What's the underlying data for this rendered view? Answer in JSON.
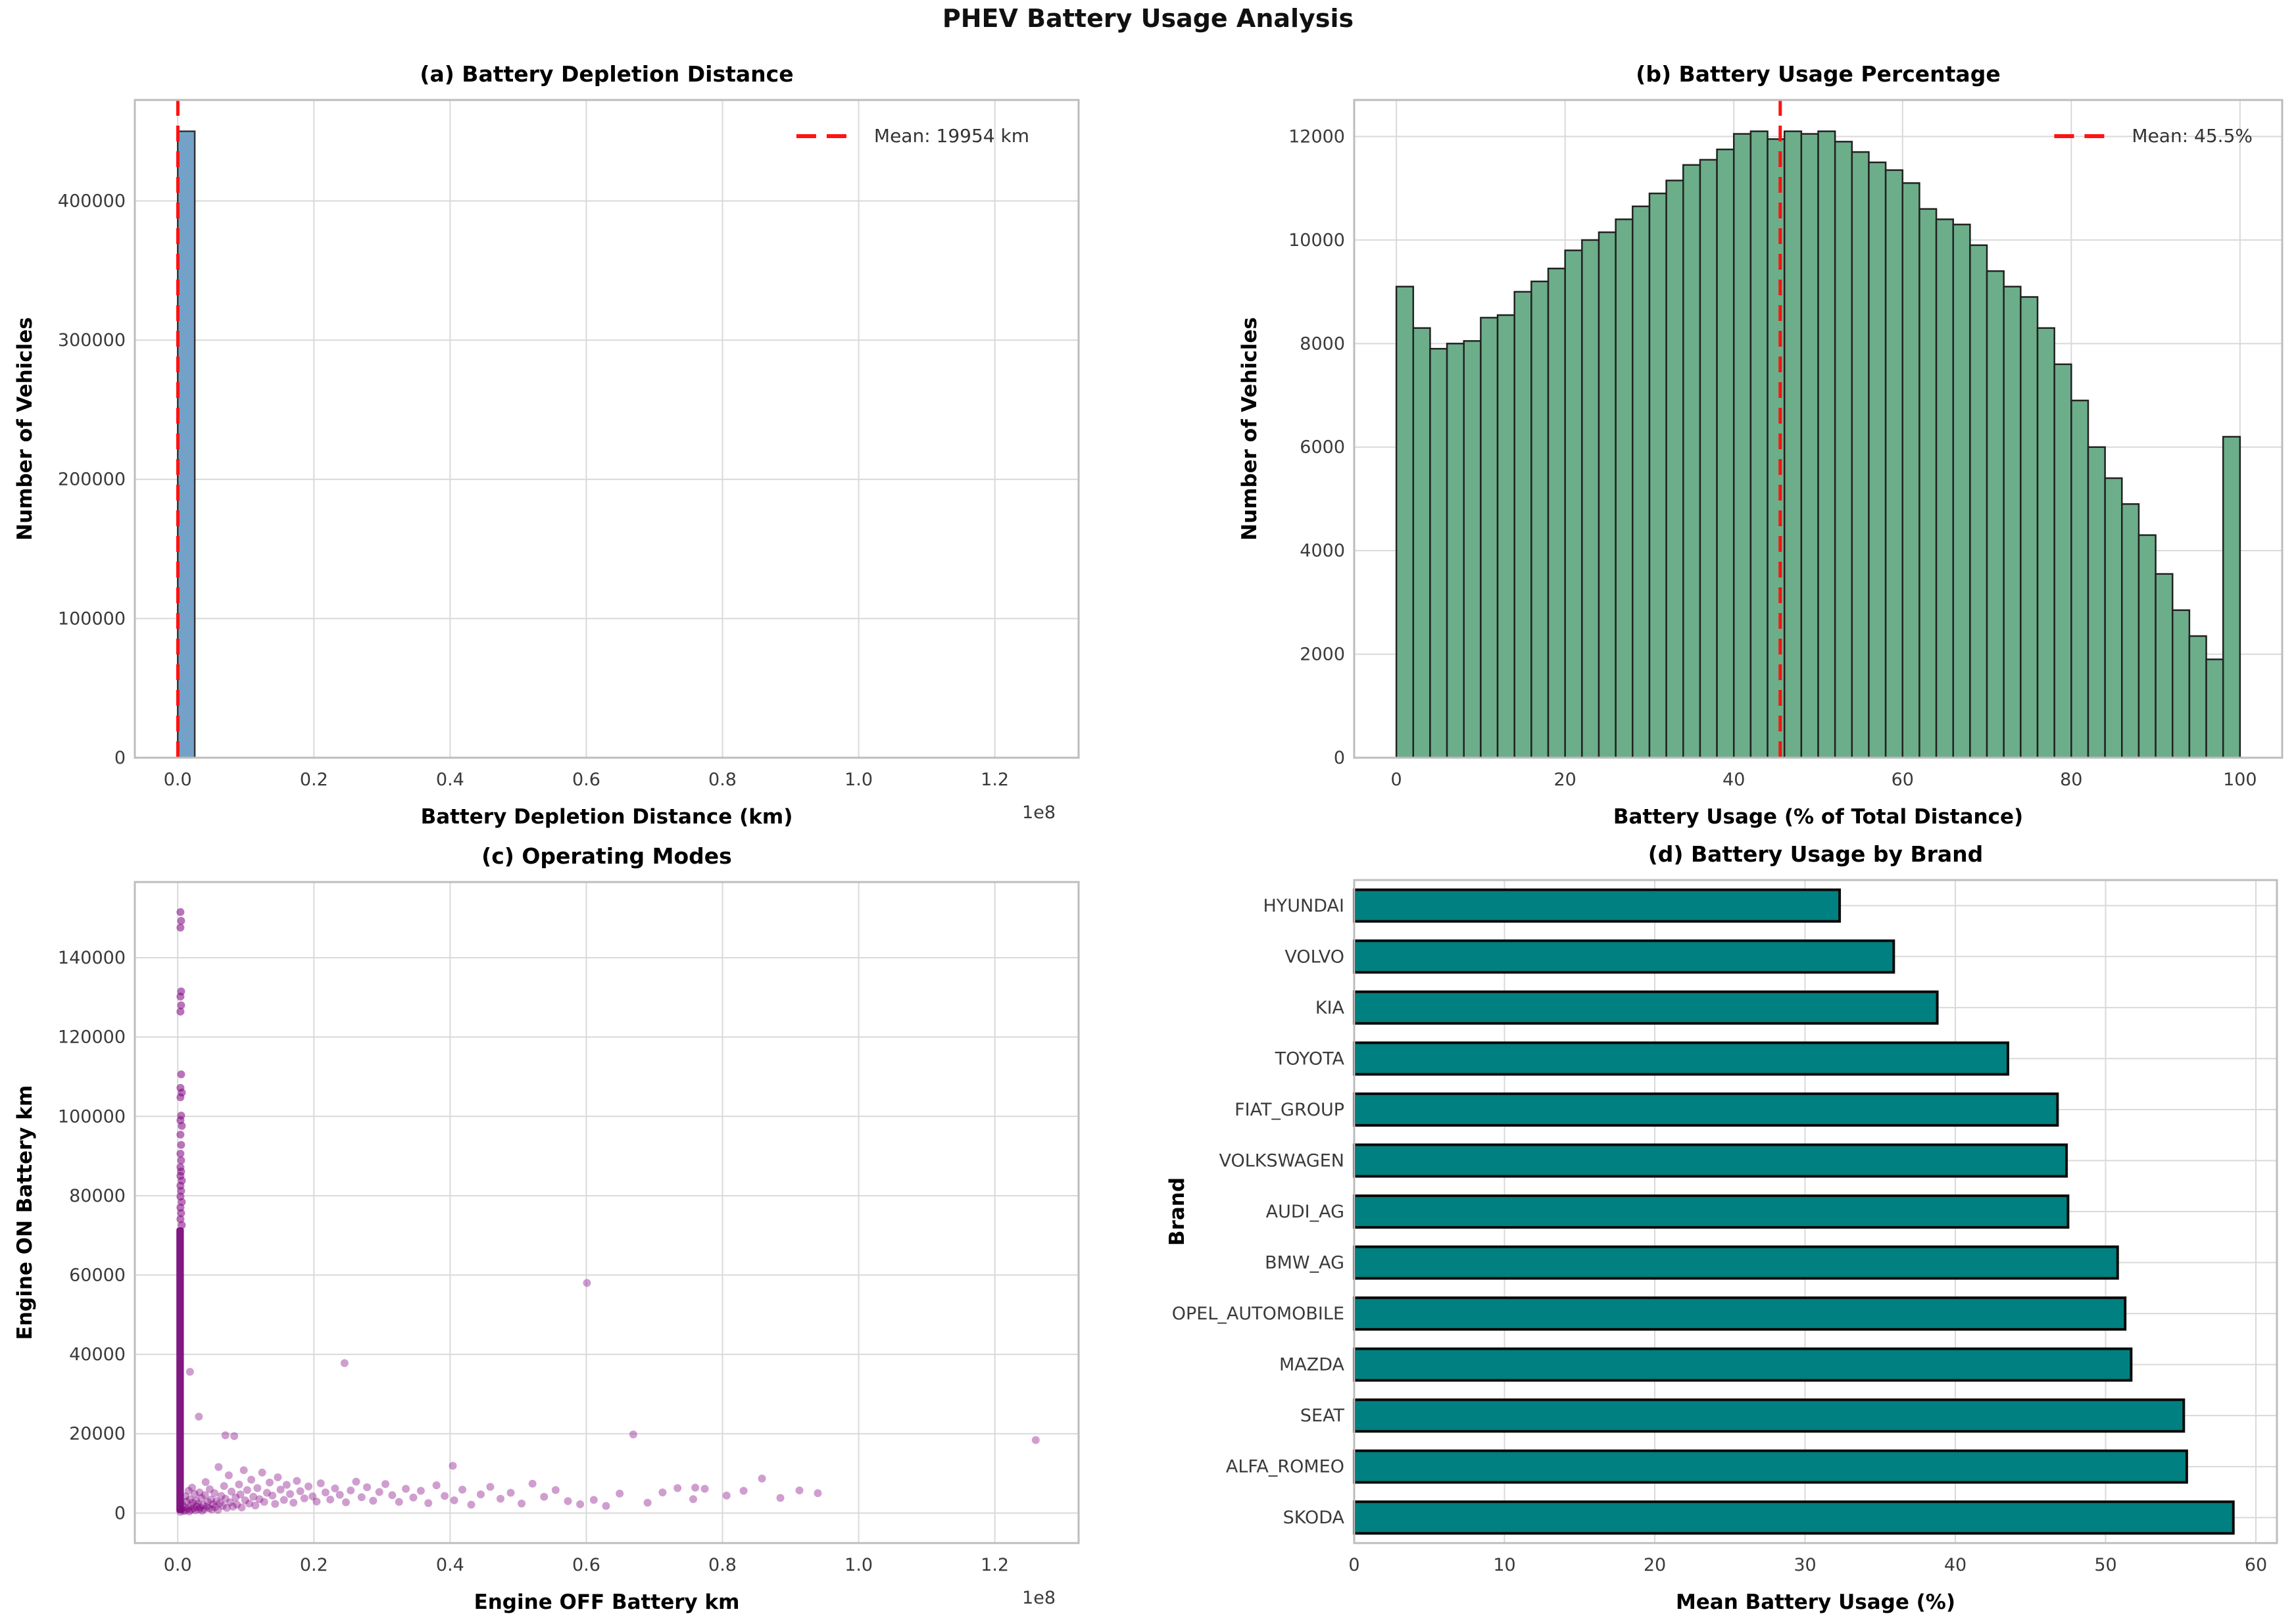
{
  "figure_title": "PHEV Battery Usage Analysis",
  "palette": {
    "red_line": "#ff1212",
    "hist_a_fill": "#74a1c7",
    "hist_a_edge": "#333333",
    "hist_b_fill": "#6cae89",
    "hist_b_edge": "#222222",
    "scatter_fill": "#800080",
    "scatter_column": "#7d107d",
    "barh_fill": "#008080",
    "barh_edge": "#0a0a0a",
    "grid": "#d9d9d9",
    "frame": "#bdbdbd",
    "tick_text": "#3a3a3a",
    "label_text": "#000000"
  },
  "chart_data": [
    {
      "id": "a",
      "type": "bar",
      "kind": "histogram",
      "title": "(a) Battery Depletion Distance",
      "xlabel": "Battery Depletion Distance (km)",
      "ylabel": "Number of Vehicles",
      "x_offset_label": "1e8",
      "xlim": [
        -0.063,
        1.323
      ],
      "ylim": [
        0,
        472500
      ],
      "grid": true,
      "xticks": {
        "values": [
          0,
          0.2,
          0.4,
          0.6,
          0.8,
          1.0,
          1.2
        ],
        "labels": [
          "0.0",
          "0.2",
          "0.4",
          "0.6",
          "0.8",
          "1.0",
          "1.2"
        ]
      },
      "yticks": {
        "values": [
          0,
          100000,
          200000,
          300000,
          400000
        ],
        "labels": [
          "0",
          "100000",
          "200000",
          "300000",
          "400000"
        ]
      },
      "bins": {
        "start": 0,
        "width": 0.025,
        "counts": [
          450000
        ]
      },
      "mean_line": {
        "x": 0.00019954,
        "mean_km": 19954,
        "legend_label": "Mean: 19954 km",
        "legend_position": "upper right"
      }
    },
    {
      "id": "b",
      "type": "bar",
      "kind": "histogram",
      "title": "(b) Battery Usage Percentage",
      "xlabel": "Battery Usage (% of Total Distance)",
      "ylabel": "Number of Vehicles",
      "xlim": [
        -5,
        105
      ],
      "ylim": [
        0,
        12705
      ],
      "grid": true,
      "xticks": {
        "values": [
          0,
          20,
          40,
          60,
          80,
          100
        ],
        "labels": [
          "0",
          "20",
          "40",
          "60",
          "80",
          "100"
        ]
      },
      "yticks": {
        "values": [
          0,
          2000,
          4000,
          6000,
          8000,
          10000,
          12000
        ],
        "labels": [
          "0",
          "2000",
          "4000",
          "6000",
          "8000",
          "10000",
          "12000"
        ]
      },
      "bins": {
        "start": 0,
        "width": 2,
        "counts": [
          9100,
          8300,
          7900,
          8000,
          8050,
          8500,
          8550,
          9000,
          9200,
          9450,
          9800,
          10000,
          10150,
          10400,
          10650,
          10900,
          11150,
          11450,
          11550,
          11750,
          12050,
          12100,
          11950,
          12100,
          12050,
          12100,
          11900,
          11700,
          11500,
          11350,
          11100,
          10600,
          10400,
          10300,
          9900,
          9400,
          9100,
          8900,
          8300,
          7600,
          6900,
          6000,
          5400,
          4900,
          4300,
          3550,
          2850,
          2350,
          1900,
          6200
        ]
      },
      "mean_line": {
        "x": 45.5,
        "mean_pct": 45.5,
        "legend_label": "Mean: 45.5%",
        "legend_position": "upper right"
      }
    },
    {
      "id": "c",
      "type": "scatter",
      "title": "(c) Operating Modes",
      "xlabel": "Engine OFF Battery km",
      "ylabel": "Engine ON Battery km",
      "x_offset_label": "1e8",
      "xlim": [
        -0.063,
        1.323
      ],
      "ylim": [
        -7575,
        159075
      ],
      "grid": true,
      "xticks": {
        "values": [
          0,
          0.2,
          0.4,
          0.6,
          0.8,
          1.0,
          1.2
        ],
        "labels": [
          "0.0",
          "0.2",
          "0.4",
          "0.6",
          "0.8",
          "1.0",
          "1.2"
        ]
      },
      "yticks": {
        "values": [
          0,
          20000,
          40000,
          60000,
          80000,
          100000,
          120000,
          140000
        ],
        "labels": [
          "0",
          "20000",
          "40000",
          "60000",
          "80000",
          "100000",
          "120000",
          "140000"
        ]
      },
      "dense_column": {
        "x0": -0.002,
        "x1": 0.009,
        "y0": 0,
        "y1": 72000
      },
      "column_points": [
        [
          0.004,
          151500
        ],
        [
          0.005,
          149300
        ],
        [
          0.004,
          147600
        ],
        [
          0.005,
          131500
        ],
        [
          0.004,
          130200
        ],
        [
          0.005,
          128000
        ],
        [
          0.004,
          126400
        ],
        [
          0.005,
          110600
        ],
        [
          0.004,
          107200
        ],
        [
          0.006,
          106000
        ],
        [
          0.004,
          104800
        ],
        [
          0.005,
          100200
        ],
        [
          0.004,
          99000
        ],
        [
          0.006,
          97600
        ],
        [
          0.004,
          95400
        ],
        [
          0.005,
          92800
        ],
        [
          0.004,
          90600
        ],
        [
          0.005,
          88900
        ],
        [
          0.004,
          87200
        ],
        [
          0.005,
          86100
        ],
        [
          0.004,
          85000
        ],
        [
          0.006,
          83800
        ],
        [
          0.004,
          82500
        ],
        [
          0.005,
          81200
        ],
        [
          0.004,
          79800
        ],
        [
          0.006,
          78400
        ],
        [
          0.004,
          77000
        ],
        [
          0.005,
          75600
        ],
        [
          0.004,
          74100
        ],
        [
          0.006,
          72600
        ]
      ],
      "points": [
        [
          0.004,
          300
        ],
        [
          0.006,
          900
        ],
        [
          0.007,
          2200
        ],
        [
          0.009,
          500
        ],
        [
          0.01,
          1500
        ],
        [
          0.011,
          4200
        ],
        [
          0.012,
          700
        ],
        [
          0.013,
          2900
        ],
        [
          0.015,
          1100
        ],
        [
          0.016,
          5600
        ],
        [
          0.017,
          400
        ],
        [
          0.018,
          3500
        ],
        [
          0.019,
          1900
        ],
        [
          0.02,
          800
        ],
        [
          0.021,
          6400
        ],
        [
          0.022,
          2600
        ],
        [
          0.023,
          1200
        ],
        [
          0.025,
          4800
        ],
        [
          0.026,
          700
        ],
        [
          0.027,
          3100
        ],
        [
          0.028,
          1600
        ],
        [
          0.03,
          2300
        ],
        [
          0.031,
          900
        ],
        [
          0.032,
          5200
        ],
        [
          0.033,
          1400
        ],
        [
          0.035,
          3800
        ],
        [
          0.036,
          600
        ],
        [
          0.037,
          2000
        ],
        [
          0.039,
          1000
        ],
        [
          0.04,
          4500
        ],
        [
          0.041,
          7800
        ],
        [
          0.043,
          1700
        ],
        [
          0.044,
          2800
        ],
        [
          0.046,
          1200
        ],
        [
          0.047,
          6000
        ],
        [
          0.049,
          3400
        ],
        [
          0.05,
          900
        ],
        [
          0.052,
          2200
        ],
        [
          0.054,
          5000
        ],
        [
          0.055,
          1500
        ],
        [
          0.057,
          3000
        ],
        [
          0.059,
          800
        ],
        [
          0.06,
          11600
        ],
        [
          0.062,
          2500
        ],
        [
          0.064,
          4300
        ],
        [
          0.066,
          1800
        ],
        [
          0.068,
          6800
        ],
        [
          0.07,
          3600
        ],
        [
          0.072,
          1300
        ],
        [
          0.075,
          9500
        ],
        [
          0.077,
          2700
        ],
        [
          0.079,
          5400
        ],
        [
          0.081,
          1600
        ],
        [
          0.083,
          19400
        ],
        [
          0.085,
          3900
        ],
        [
          0.087,
          2100
        ],
        [
          0.09,
          7200
        ],
        [
          0.092,
          4700
        ],
        [
          0.094,
          1400
        ],
        [
          0.097,
          10800
        ],
        [
          0.099,
          3200
        ],
        [
          0.102,
          5800
        ],
        [
          0.105,
          2400
        ],
        [
          0.108,
          8400
        ],
        [
          0.111,
          4100
        ],
        [
          0.114,
          1900
        ],
        [
          0.117,
          6300
        ],
        [
          0.12,
          3500
        ],
        [
          0.124,
          10200
        ],
        [
          0.127,
          2800
        ],
        [
          0.131,
          5100
        ],
        [
          0.135,
          7700
        ],
        [
          0.139,
          4400
        ],
        [
          0.143,
          2300
        ],
        [
          0.147,
          9000
        ],
        [
          0.151,
          5900
        ],
        [
          0.156,
          3300
        ],
        [
          0.16,
          7100
        ],
        [
          0.165,
          4800
        ],
        [
          0.17,
          2600
        ],
        [
          0.175,
          8100
        ],
        [
          0.18,
          5500
        ],
        [
          0.186,
          3700
        ],
        [
          0.192,
          6700
        ],
        [
          0.198,
          4200
        ],
        [
          0.204,
          2900
        ],
        [
          0.21,
          7500
        ],
        [
          0.217,
          5200
        ],
        [
          0.224,
          3400
        ],
        [
          0.231,
          6200
        ],
        [
          0.238,
          4600
        ],
        [
          0.245,
          37800
        ],
        [
          0.247,
          2700
        ],
        [
          0.254,
          5700
        ],
        [
          0.262,
          7900
        ],
        [
          0.27,
          4000
        ],
        [
          0.278,
          6500
        ],
        [
          0.287,
          3100
        ],
        [
          0.296,
          5300
        ],
        [
          0.305,
          7300
        ],
        [
          0.315,
          4500
        ],
        [
          0.325,
          2800
        ],
        [
          0.335,
          6100
        ],
        [
          0.346,
          3900
        ],
        [
          0.357,
          5600
        ],
        [
          0.368,
          2500
        ],
        [
          0.38,
          7000
        ],
        [
          0.392,
          4300
        ],
        [
          0.404,
          11900
        ],
        [
          0.406,
          3200
        ],
        [
          0.418,
          5900
        ],
        [
          0.431,
          2100
        ],
        [
          0.445,
          4700
        ],
        [
          0.459,
          6600
        ],
        [
          0.474,
          3600
        ],
        [
          0.489,
          5100
        ],
        [
          0.505,
          2400
        ],
        [
          0.521,
          7400
        ],
        [
          0.538,
          4100
        ],
        [
          0.555,
          5800
        ],
        [
          0.573,
          3000
        ],
        [
          0.591,
          2200
        ],
        [
          0.601,
          58000
        ],
        [
          0.611,
          3300
        ],
        [
          0.629,
          1800
        ],
        [
          0.649,
          4900
        ],
        [
          0.669,
          19800
        ],
        [
          0.69,
          2600
        ],
        [
          0.712,
          5200
        ],
        [
          0.734,
          6300
        ],
        [
          0.757,
          3500
        ],
        [
          0.76,
          6400
        ],
        [
          0.774,
          6100
        ],
        [
          0.806,
          4400
        ],
        [
          0.831,
          5600
        ],
        [
          0.858,
          8700
        ],
        [
          0.885,
          3800
        ],
        [
          0.913,
          5700
        ],
        [
          0.94,
          5000
        ],
        [
          1.26,
          18400
        ],
        [
          0.018,
          35600
        ],
        [
          0.031,
          24300
        ],
        [
          0.07,
          19600
        ]
      ]
    },
    {
      "id": "d",
      "type": "bar",
      "orientation": "horizontal",
      "title": "(d) Battery Usage by Brand",
      "xlabel": "Mean Battery Usage (%)",
      "ylabel": "Brand",
      "xlim": [
        0,
        61.4
      ],
      "grid": true,
      "xticks": {
        "values": [
          0,
          10,
          20,
          30,
          40,
          50,
          60
        ],
        "labels": [
          "0",
          "10",
          "20",
          "30",
          "40",
          "50",
          "60"
        ]
      },
      "categories": [
        "HYUNDAI",
        "VOLVO",
        "KIA",
        "TOYOTA",
        "FIAT_GROUP",
        "VOLKSWAGEN",
        "AUDI_AG",
        "BMW_AG",
        "OPEL_AUTOMOBILE",
        "MAZDA",
        "SEAT",
        "ALFA_ROMEO",
        "SKODA"
      ],
      "values": [
        32.3,
        35.9,
        38.8,
        43.5,
        46.8,
        47.4,
        47.5,
        50.8,
        51.3,
        51.7,
        55.2,
        55.4,
        58.5
      ]
    }
  ]
}
